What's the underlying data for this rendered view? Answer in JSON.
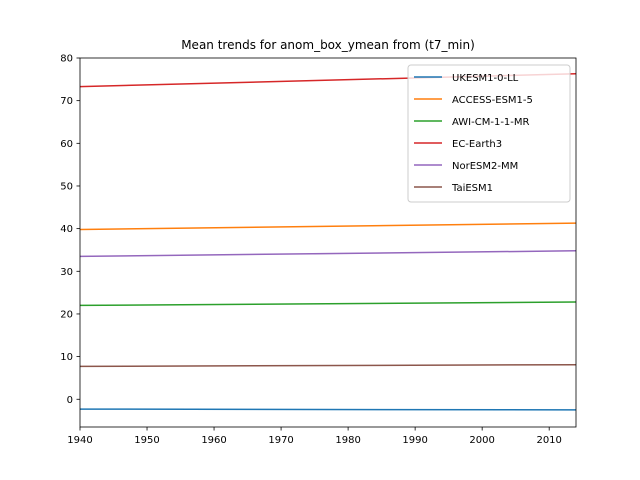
{
  "chart_data": {
    "type": "line",
    "title": "Mean trends for anom_box_ymean from (t7_min)",
    "xlabel": "",
    "ylabel": "",
    "xlim": [
      1940,
      2014
    ],
    "ylim": [
      -6.5,
      80
    ],
    "xticks": [
      1940,
      1950,
      1960,
      1970,
      1980,
      1990,
      2000,
      2010
    ],
    "yticks": [
      0,
      10,
      20,
      30,
      40,
      50,
      60,
      70,
      80
    ],
    "grid": false,
    "legend_position": "top-right",
    "series": [
      {
        "name": "UKESM1-0-LL",
        "color": "#1f77b4",
        "x": [
          1940,
          2014
        ],
        "y": [
          -2.3,
          -2.5
        ]
      },
      {
        "name": "ACCESS-ESM1-5",
        "color": "#ff7f0e",
        "x": [
          1940,
          2014
        ],
        "y": [
          39.8,
          41.3
        ]
      },
      {
        "name": "AWI-CM-1-1-MR",
        "color": "#2ca02c",
        "x": [
          1940,
          2014
        ],
        "y": [
          22.0,
          22.8
        ]
      },
      {
        "name": "EC-Earth3",
        "color": "#d62728",
        "x": [
          1940,
          2014
        ],
        "y": [
          73.3,
          76.3
        ]
      },
      {
        "name": "NorESM2-MM",
        "color": "#9467bd",
        "x": [
          1940,
          2014
        ],
        "y": [
          33.5,
          34.8
        ]
      },
      {
        "name": "TaiESM1",
        "color": "#8c564b",
        "x": [
          1940,
          2014
        ],
        "y": [
          7.7,
          8.1
        ]
      }
    ]
  }
}
